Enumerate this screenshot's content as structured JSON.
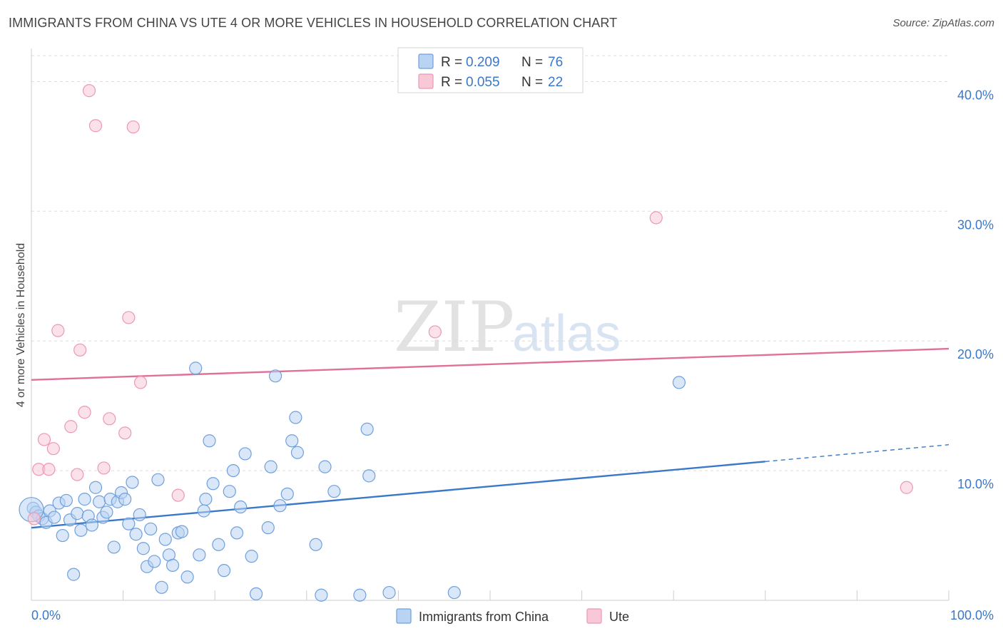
{
  "title": "IMMIGRANTS FROM CHINA VS UTE 4 OR MORE VEHICLES IN HOUSEHOLD CORRELATION CHART",
  "source": "Source: ZipAtlas.com",
  "watermark": {
    "zip": "ZIP",
    "atlas": "atlas"
  },
  "colors": {
    "blue": "#3a78c9",
    "blue_fill": "#b9d3f3",
    "blue_stroke": "#6fa0dd",
    "pink": "#e07098",
    "pink_fill": "#f8c8d7",
    "pink_stroke": "#ec98b4",
    "grid": "#dddddd"
  },
  "legend": {
    "rows": [
      {
        "r_label": "R =",
        "r_value": "0.209",
        "n_label": "N =",
        "n_value": "76",
        "color": "blue"
      },
      {
        "r_label": "R =",
        "r_value": "0.055",
        "n_label": "N =",
        "n_value": "22",
        "color": "pink"
      }
    ]
  },
  "chart_data": {
    "type": "scatter",
    "title": "IMMIGRANTS FROM CHINA VS UTE 4 OR MORE VEHICLES IN HOUSEHOLD CORRELATION CHART",
    "xlabel": "",
    "ylabel": "4 or more Vehicles in Household",
    "xlim": [
      0,
      100
    ],
    "ylim": [
      0,
      42
    ],
    "x_ticks": [
      {
        "value": 0,
        "label": "0.0%"
      },
      {
        "value": 100,
        "label": "100.0%"
      }
    ],
    "y_ticks": [
      {
        "value": 10,
        "label": "10.0%"
      },
      {
        "value": 20,
        "label": "20.0%"
      },
      {
        "value": 30,
        "label": "30.0%"
      },
      {
        "value": 40,
        "label": "40.0%"
      }
    ],
    "legend_placement": "top-center",
    "series": [
      {
        "name": "Immigrants from China",
        "color": "blue",
        "trend": {
          "x0": 0,
          "y0": 5.6,
          "x1": 80,
          "y1": 10.7,
          "dash_to_x": 100,
          "dash_to_y": 12.0
        },
        "points": [
          [
            0.2,
            7.1
          ],
          [
            0.5,
            6.8
          ],
          [
            0.8,
            6.5
          ],
          [
            1.2,
            6.3
          ],
          [
            1.6,
            6.0
          ],
          [
            2.0,
            6.9
          ],
          [
            2.5,
            6.4
          ],
          [
            3.0,
            7.5
          ],
          [
            3.4,
            5.0
          ],
          [
            3.8,
            7.7
          ],
          [
            4.2,
            6.2
          ],
          [
            4.6,
            2.0
          ],
          [
            5.0,
            6.7
          ],
          [
            5.4,
            5.4
          ],
          [
            5.8,
            7.8
          ],
          [
            6.2,
            6.5
          ],
          [
            6.6,
            5.8
          ],
          [
            7.0,
            8.7
          ],
          [
            7.4,
            7.6
          ],
          [
            7.8,
            6.4
          ],
          [
            8.2,
            6.8
          ],
          [
            8.6,
            7.8
          ],
          [
            9.0,
            4.1
          ],
          [
            9.4,
            7.6
          ],
          [
            9.8,
            8.3
          ],
          [
            10.2,
            7.8
          ],
          [
            10.6,
            5.9
          ],
          [
            11.0,
            9.1
          ],
          [
            11.4,
            5.1
          ],
          [
            11.8,
            6.6
          ],
          [
            12.2,
            4.0
          ],
          [
            12.6,
            2.6
          ],
          [
            13.0,
            5.5
          ],
          [
            13.4,
            3.0
          ],
          [
            13.8,
            9.3
          ],
          [
            14.2,
            1.0
          ],
          [
            14.6,
            4.7
          ],
          [
            15.0,
            3.5
          ],
          [
            15.4,
            2.7
          ],
          [
            16.0,
            5.2
          ],
          [
            16.4,
            5.3
          ],
          [
            17.0,
            1.8
          ],
          [
            17.9,
            17.9
          ],
          [
            18.3,
            3.5
          ],
          [
            18.8,
            6.9
          ],
          [
            19.0,
            7.8
          ],
          [
            19.4,
            12.3
          ],
          [
            19.8,
            9.0
          ],
          [
            20.4,
            4.3
          ],
          [
            21.0,
            2.3
          ],
          [
            21.6,
            8.4
          ],
          [
            22.0,
            10.0
          ],
          [
            22.4,
            5.2
          ],
          [
            22.8,
            7.2
          ],
          [
            23.3,
            11.3
          ],
          [
            24.0,
            3.4
          ],
          [
            24.5,
            0.5
          ],
          [
            25.8,
            5.6
          ],
          [
            26.1,
            10.3
          ],
          [
            26.6,
            17.3
          ],
          [
            27.1,
            7.3
          ],
          [
            27.9,
            8.2
          ],
          [
            28.4,
            12.3
          ],
          [
            28.8,
            14.1
          ],
          [
            29.0,
            11.4
          ],
          [
            31.0,
            4.3
          ],
          [
            31.6,
            0.4
          ],
          [
            32.0,
            10.3
          ],
          [
            33.0,
            8.4
          ],
          [
            35.8,
            0.4
          ],
          [
            36.6,
            13.2
          ],
          [
            36.8,
            9.6
          ],
          [
            39.0,
            0.6
          ],
          [
            46.1,
            0.6
          ],
          [
            70.6,
            16.8
          ],
          [
            0.0,
            7.0
          ]
        ]
      },
      {
        "name": "Ute",
        "color": "pink",
        "trend": {
          "x0": 0,
          "y0": 17.0,
          "x1": 100,
          "y1": 19.4
        },
        "points": [
          [
            0.3,
            6.3
          ],
          [
            0.8,
            10.1
          ],
          [
            1.4,
            12.4
          ],
          [
            1.9,
            10.1
          ],
          [
            2.4,
            11.7
          ],
          [
            2.9,
            20.8
          ],
          [
            4.3,
            13.4
          ],
          [
            5.0,
            9.7
          ],
          [
            5.3,
            19.3
          ],
          [
            5.8,
            14.5
          ],
          [
            6.3,
            39.3
          ],
          [
            7.0,
            36.6
          ],
          [
            7.9,
            10.2
          ],
          [
            8.5,
            14.0
          ],
          [
            10.2,
            12.9
          ],
          [
            10.6,
            21.8
          ],
          [
            11.1,
            36.5
          ],
          [
            11.9,
            16.8
          ],
          [
            16.0,
            8.1
          ],
          [
            44.0,
            20.7
          ],
          [
            68.1,
            29.5
          ],
          [
            95.4,
            8.7
          ]
        ]
      }
    ]
  },
  "bottom_legend": [
    {
      "label": "Immigrants from China",
      "color": "blue"
    },
    {
      "label": "Ute",
      "color": "pink"
    }
  ]
}
